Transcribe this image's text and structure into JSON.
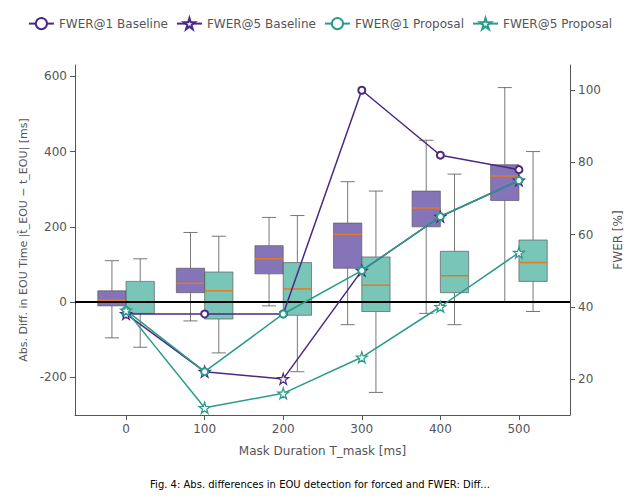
{
  "chart_data": {
    "type": "box_line",
    "caption": "Fig. 4: Abs. differences in EOU detection for forced and FWER: Diff...",
    "xlabel": "Mask Duration T_mask [ms]",
    "ylabel": "Abs. Diff. in EOU Time |t̂_EOU − t_EOU| [ms]",
    "y2label": "FWER [%]",
    "x": [
      0,
      100,
      200,
      300,
      400,
      500
    ],
    "xlim": [
      -65,
      565
    ],
    "xticks": [
      0,
      100,
      200,
      300,
      400,
      500
    ],
    "ylim": [
      -300,
      630
    ],
    "yticks": [
      -200,
      0,
      200,
      400,
      600
    ],
    "y2lim": [
      10,
      107
    ],
    "y2ticks": [
      20,
      40,
      60,
      80,
      100
    ],
    "grid": false,
    "legend": "top",
    "hline_y": 0,
    "median_color": "#E87820",
    "series": [
      {
        "type": "box",
        "color": "#6A55A8",
        "q1": [
          -10,
          25,
          75,
          90,
          200,
          270
        ],
        "median": [
          5,
          50,
          115,
          180,
          250,
          335
        ],
        "q3": [
          30,
          90,
          150,
          210,
          295,
          365
        ],
        "whislo": [
          -95,
          -50,
          -10,
          -60,
          -30,
          0
        ],
        "whishi": [
          110,
          185,
          225,
          320,
          430,
          570
        ]
      },
      {
        "type": "box",
        "color": "#5BB8A8",
        "q1": [
          -30,
          -45,
          -35,
          -25,
          25,
          55
        ],
        "median": [
          0,
          30,
          35,
          45,
          70,
          105
        ],
        "q3": [
          55,
          80,
          105,
          120,
          135,
          165
        ],
        "whislo": [
          -120,
          -135,
          -185,
          -240,
          -60,
          -25
        ],
        "whishi": [
          115,
          175,
          230,
          295,
          340,
          400
        ]
      },
      {
        "type": "line",
        "name": "FWER@1 Baseline",
        "color": "#4B2882",
        "marker": "circle",
        "axis": "y2",
        "values": [
          38,
          38,
          38,
          100,
          82,
          78
        ]
      },
      {
        "type": "line",
        "name": "FWER@5 Baseline",
        "color": "#4B2882",
        "marker": "star",
        "axis": "y2",
        "values": [
          38,
          22,
          20,
          50,
          65,
          75
        ]
      },
      {
        "type": "line",
        "name": "FWER@1 Proposal",
        "color": "#2A9B8A",
        "marker": "circle",
        "axis": "y2",
        "values": [
          39,
          22,
          38,
          50,
          65,
          75
        ]
      },
      {
        "type": "line",
        "name": "FWER@5 Proposal",
        "color": "#2A9B8A",
        "marker": "star",
        "axis": "y2",
        "values": [
          39,
          12,
          16,
          26,
          40,
          55
        ]
      }
    ]
  }
}
